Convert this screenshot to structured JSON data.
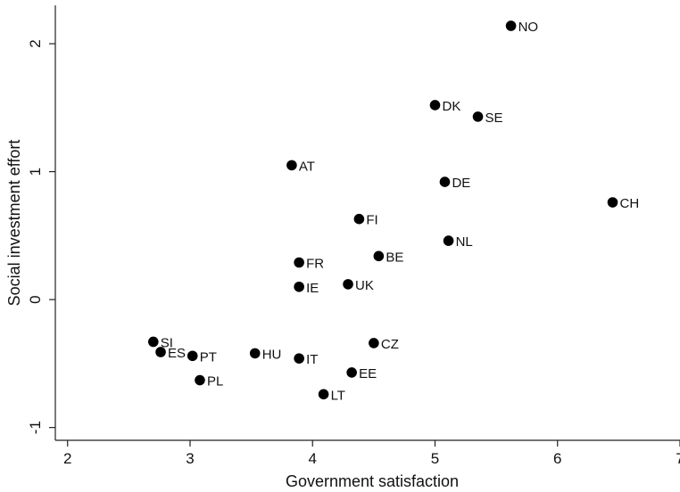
{
  "chart_data": {
    "type": "scatter",
    "xlabel": "Government satisfaction",
    "ylabel": "Social investment effort",
    "xlim": [
      1.9,
      7
    ],
    "ylim": [
      -1.1,
      2.3
    ],
    "xticks": [
      2,
      3,
      4,
      5,
      6,
      7
    ],
    "yticks": [
      -1,
      0,
      1,
      2
    ],
    "grid": false,
    "marker_color": "#000000",
    "points": [
      {
        "label": "NO",
        "x": 5.62,
        "y": 2.14
      },
      {
        "label": "DK",
        "x": 5.0,
        "y": 1.52
      },
      {
        "label": "SE",
        "x": 5.35,
        "y": 1.43
      },
      {
        "label": "AT",
        "x": 3.83,
        "y": 1.05
      },
      {
        "label": "DE",
        "x": 5.08,
        "y": 0.92
      },
      {
        "label": "CH",
        "x": 6.45,
        "y": 0.76
      },
      {
        "label": "FI",
        "x": 4.38,
        "y": 0.63
      },
      {
        "label": "NL",
        "x": 5.11,
        "y": 0.46
      },
      {
        "label": "BE",
        "x": 4.54,
        "y": 0.34
      },
      {
        "label": "FR",
        "x": 3.89,
        "y": 0.29
      },
      {
        "label": "UK",
        "x": 4.29,
        "y": 0.12
      },
      {
        "label": "IE",
        "x": 3.89,
        "y": 0.1
      },
      {
        "label": "SI",
        "x": 2.7,
        "y": -0.33
      },
      {
        "label": "CZ",
        "x": 4.5,
        "y": -0.34
      },
      {
        "label": "ES",
        "x": 2.76,
        "y": -0.41
      },
      {
        "label": "PT",
        "x": 3.02,
        "y": -0.44
      },
      {
        "label": "HU",
        "x": 3.53,
        "y": -0.42
      },
      {
        "label": "IT",
        "x": 3.89,
        "y": -0.46
      },
      {
        "label": "EE",
        "x": 4.32,
        "y": -0.57
      },
      {
        "label": "PL",
        "x": 3.08,
        "y": -0.63
      },
      {
        "label": "LT",
        "x": 4.09,
        "y": -0.74
      }
    ]
  }
}
